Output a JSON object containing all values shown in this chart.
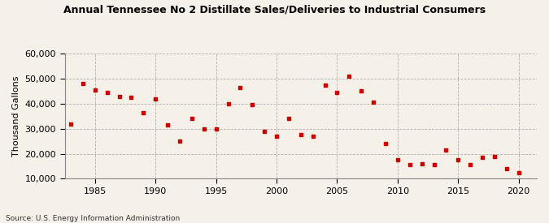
{
  "title": "Annual Tennessee No 2 Distillate Sales/Deliveries to Industrial Consumers",
  "ylabel": "Thousand Gallons",
  "source": "Source: U.S. Energy Information Administration",
  "background_color": "#f5f0e8",
  "marker_color": "#cc0000",
  "years": [
    1983,
    1984,
    1985,
    1986,
    1987,
    1988,
    1989,
    1990,
    1991,
    1992,
    1993,
    1994,
    1995,
    1996,
    1997,
    1998,
    1999,
    2000,
    2001,
    2002,
    2003,
    2004,
    2005,
    2006,
    2007,
    2008,
    2009,
    2010,
    2011,
    2012,
    2013,
    2014,
    2015,
    2016,
    2017,
    2018,
    2019,
    2020
  ],
  "values": [
    32000,
    48000,
    45500,
    44500,
    43000,
    42500,
    36500,
    42000,
    31500,
    25000,
    34000,
    30000,
    30000,
    40000,
    46500,
    39500,
    29000,
    27000,
    34000,
    27500,
    27000,
    47500,
    44500,
    51000,
    45000,
    40500,
    24000,
    17500,
    15500,
    16000,
    15500,
    21500,
    17500,
    15500,
    18500,
    19000,
    14000,
    12500
  ],
  "ylim": [
    10000,
    60000
  ],
  "yticks": [
    10000,
    20000,
    30000,
    40000,
    50000,
    60000
  ],
  "xticks": [
    1985,
    1990,
    1995,
    2000,
    2005,
    2010,
    2015,
    2020
  ],
  "xlim": [
    1982.5,
    2021.5
  ]
}
